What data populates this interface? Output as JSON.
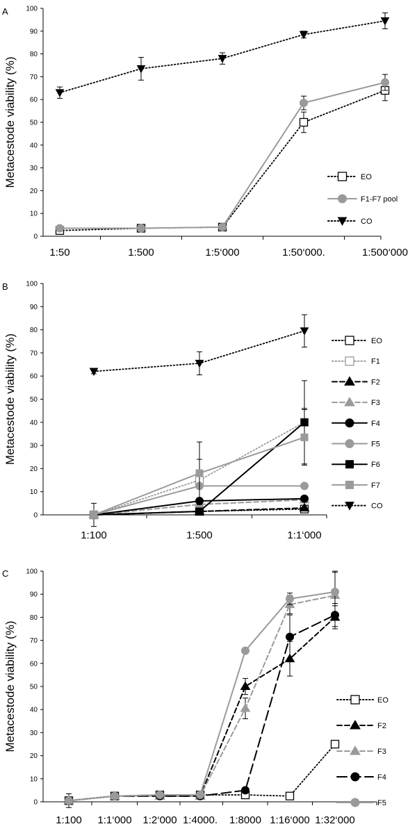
{
  "chart_data": [
    {
      "panel": "A",
      "type": "line",
      "ylabel": "Metacestode viability (%)",
      "ylim": [
        0,
        100
      ],
      "yticks": [
        0,
        10,
        20,
        30,
        40,
        50,
        60,
        70,
        80,
        90,
        100
      ],
      "categories": [
        "1:50",
        "1:500",
        "1:5‘000",
        "1:50‘000.",
        "1:500‘000"
      ],
      "legend_position": "right",
      "series": [
        {
          "name": "EO",
          "style": "dotted",
          "color": "#000000",
          "marker": "square-open",
          "values": [
            2.5,
            3.5,
            4,
            50,
            64
          ],
          "errors": [
            0.5,
            0.5,
            0.5,
            4.5,
            4.5
          ]
        },
        {
          "name": "F1-F7 pool",
          "style": "solid",
          "color": "#9a9a9a",
          "marker": "circle",
          "values": [
            3.5,
            3.5,
            4,
            58.5,
            67.5
          ],
          "errors": [
            0.5,
            0.5,
            0.5,
            3,
            3.5
          ]
        },
        {
          "name": "CO",
          "style": "dotted",
          "color": "#000000",
          "marker": "triangle-down",
          "values": [
            63,
            73.5,
            78,
            88.5,
            94.5
          ],
          "errors": [
            2.5,
            5,
            2.5,
            1.5,
            3.5
          ]
        }
      ]
    },
    {
      "panel": "B",
      "type": "line",
      "ylabel": "Metacestode viability (%)",
      "ylim": [
        0,
        100
      ],
      "yticks": [
        0,
        10,
        20,
        30,
        40,
        50,
        60,
        70,
        80,
        90,
        100
      ],
      "categories": [
        "1:100",
        "1:500",
        "1:1‘000"
      ],
      "legend_position": "right",
      "series": [
        {
          "name": "EO",
          "style": "dotted",
          "color": "#000000",
          "marker": "square-open",
          "values": [
            0,
            1.5,
            2.5
          ],
          "errors": [
            5,
            0.5,
            0.5
          ]
        },
        {
          "name": "F1",
          "style": "dotted",
          "color": "#9a9a9a",
          "marker": "square-open",
          "values": [
            0,
            15,
            40
          ],
          "errors": [
            0,
            9,
            18
          ]
        },
        {
          "name": "F2",
          "style": "dashed",
          "color": "#000000",
          "marker": "triangle-up",
          "values": [
            0,
            1.5,
            3
          ],
          "errors": [
            0,
            0.5,
            0.5
          ]
        },
        {
          "name": "F3",
          "style": "dashed",
          "color": "#9a9a9a",
          "marker": "triangle-up",
          "values": [
            0,
            4.5,
            6.5
          ],
          "errors": [
            0,
            0.5,
            0.5
          ]
        },
        {
          "name": "F4",
          "style": "solid",
          "color": "#000000",
          "marker": "circle",
          "values": [
            0,
            6,
            7
          ],
          "errors": [
            0,
            0.5,
            0.5
          ]
        },
        {
          "name": "F5",
          "style": "solid",
          "color": "#9a9a9a",
          "marker": "circle",
          "values": [
            0,
            12.5,
            12.5
          ],
          "errors": [
            0,
            1,
            1
          ]
        },
        {
          "name": "F6",
          "style": "solid",
          "color": "#000000",
          "marker": "square",
          "values": [
            0,
            1.5,
            40
          ],
          "errors": [
            0,
            0.5,
            6
          ]
        },
        {
          "name": "F7",
          "style": "solid",
          "color": "#9a9a9a",
          "marker": "square",
          "values": [
            0,
            18,
            33.5
          ],
          "errors": [
            0,
            13.5,
            12
          ]
        },
        {
          "name": "CO",
          "style": "dotted",
          "color": "#000000",
          "marker": "triangle-down",
          "values": [
            62,
            65.5,
            79.5
          ],
          "errors": [
            1,
            5,
            7
          ]
        }
      ]
    },
    {
      "panel": "C",
      "type": "line",
      "ylabel": "Metacestode viability (%)",
      "ylim": [
        0,
        100
      ],
      "yticks": [
        0,
        10,
        20,
        30,
        40,
        50,
        60,
        70,
        80,
        90,
        100
      ],
      "categories": [
        "1:100",
        "1:1‘000",
        "1:2‘000",
        "1:4000.",
        "1:8000",
        "1:16‘000",
        "1:32‘000"
      ],
      "legend_position": "right",
      "series": [
        {
          "name": "EO",
          "style": "dotted",
          "color": "#000000",
          "marker": "square-open",
          "values": [
            0.5,
            2.5,
            3,
            3,
            3,
            2.5,
            25
          ],
          "errors": [
            3,
            0.5,
            0.5,
            0.5,
            0.5,
            0.5,
            0
          ]
        },
        {
          "name": "F2",
          "style": "dashed",
          "color": "#000000",
          "marker": "triangle-up",
          "values": [
            0.5,
            2.5,
            2.5,
            2.5,
            50,
            62,
            80
          ],
          "errors": [
            0,
            0.5,
            0.5,
            0.5,
            3.5,
            7.5,
            5
          ]
        },
        {
          "name": "F3",
          "style": "dashed",
          "color": "#9a9a9a",
          "marker": "triangle-up",
          "values": [
            0.5,
            2.5,
            2.5,
            2.5,
            40.5,
            85.5,
            89.5
          ],
          "errors": [
            0,
            0.5,
            0.5,
            0.5,
            4.5,
            4,
            10
          ]
        },
        {
          "name": "F4",
          "style": "longdash",
          "color": "#000000",
          "marker": "circle",
          "values": [
            0.5,
            2.5,
            2.5,
            2.5,
            5,
            71.5,
            81
          ],
          "errors": [
            0,
            0.5,
            0.5,
            0.5,
            0.5,
            9.5,
            5
          ]
        },
        {
          "name": "F5",
          "style": "solid",
          "color": "#9a9a9a",
          "marker": "circle",
          "values": [
            0.5,
            2.5,
            3,
            3,
            65.5,
            88,
            91
          ],
          "errors": [
            0,
            0.5,
            0.5,
            0.5,
            0,
            2.5,
            9
          ]
        }
      ]
    }
  ]
}
